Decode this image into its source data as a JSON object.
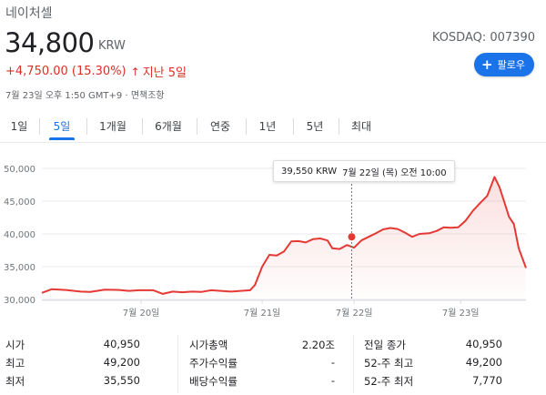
{
  "header": {
    "company": "네이처셀",
    "price": "34,800",
    "currency": "KRW",
    "ticker": "KOSDAQ: 007390",
    "change": "+4,750.00 (15.30%)",
    "change_arrow": "↑",
    "change_period": "지난 5일",
    "timestamp": "7월 23일 오후 1:50 GMT+9 · 면책조항",
    "follow_label": "팔로우",
    "follow_icon": "plus-icon"
  },
  "tabs": [
    {
      "label": "1일",
      "active": false
    },
    {
      "label": "5일",
      "active": true
    },
    {
      "label": "1개월",
      "active": false
    },
    {
      "label": "6개월",
      "active": false
    },
    {
      "label": "연중",
      "active": false
    },
    {
      "label": "1년",
      "active": false
    },
    {
      "label": "5년",
      "active": false
    },
    {
      "label": "최대",
      "active": false
    }
  ],
  "tooltip": {
    "value": "39,550 KRW",
    "date": "7월 22일 (목) 오전 10:00"
  },
  "colors": {
    "line": "#e53935",
    "accent": "#1a73e8",
    "negative": "#d93025"
  },
  "chart_data": {
    "type": "line",
    "yticks": [
      "50,000",
      "45,000",
      "40,000",
      "35,000",
      "30,000"
    ],
    "xticks": [
      "7월 20일",
      "7월 21일",
      "7월 22일",
      "7월 23일"
    ],
    "ylim": [
      30000,
      50000
    ],
    "highlight": {
      "x": 0.64,
      "y": 39550
    },
    "series": [
      {
        "points": [
          [
            0.0,
            31000
          ],
          [
            0.02,
            31550
          ],
          [
            0.05,
            31450
          ],
          [
            0.08,
            31200
          ],
          [
            0.1,
            31150
          ],
          [
            0.13,
            31500
          ],
          [
            0.16,
            31450
          ],
          [
            0.18,
            31300
          ],
          [
            0.2,
            31400
          ],
          [
            0.23,
            31400
          ],
          [
            0.25,
            30850
          ],
          [
            0.27,
            31200
          ],
          [
            0.29,
            31100
          ],
          [
            0.31,
            31200
          ],
          [
            0.33,
            31150
          ],
          [
            0.35,
            31400
          ],
          [
            0.37,
            31300
          ],
          [
            0.39,
            31200
          ],
          [
            0.41,
            31300
          ],
          [
            0.43,
            31400
          ],
          [
            0.44,
            32200
          ],
          [
            0.455,
            35000
          ],
          [
            0.47,
            36800
          ],
          [
            0.485,
            36700
          ],
          [
            0.5,
            37300
          ],
          [
            0.515,
            38850
          ],
          [
            0.53,
            38900
          ],
          [
            0.545,
            38700
          ],
          [
            0.56,
            39200
          ],
          [
            0.575,
            39300
          ],
          [
            0.59,
            39000
          ],
          [
            0.6,
            37800
          ],
          [
            0.615,
            37700
          ],
          [
            0.63,
            38300
          ],
          [
            0.645,
            37900
          ],
          [
            0.66,
            39000
          ],
          [
            0.675,
            39550
          ],
          [
            0.69,
            40100
          ],
          [
            0.705,
            40700
          ],
          [
            0.72,
            40900
          ],
          [
            0.735,
            40750
          ],
          [
            0.75,
            40200
          ],
          [
            0.765,
            39550
          ],
          [
            0.78,
            40000
          ],
          [
            0.8,
            40100
          ],
          [
            0.815,
            40450
          ],
          [
            0.83,
            41000
          ],
          [
            0.845,
            40950
          ],
          [
            0.86,
            41000
          ],
          [
            0.875,
            42000
          ],
          [
            0.89,
            43500
          ],
          [
            0.905,
            44700
          ],
          [
            0.92,
            45800
          ],
          [
            0.935,
            48700
          ],
          [
            0.945,
            47200
          ],
          [
            0.955,
            44900
          ],
          [
            0.965,
            42600
          ],
          [
            0.975,
            41500
          ],
          [
            0.985,
            37800
          ],
          [
            1.0,
            34800
          ]
        ]
      }
    ]
  },
  "stats": {
    "col1": [
      {
        "label": "시가",
        "value": "40,950"
      },
      {
        "label": "최고",
        "value": "49,200"
      },
      {
        "label": "최저",
        "value": "35,550"
      }
    ],
    "col2": [
      {
        "label": "시가총액",
        "value": "2.20조"
      },
      {
        "label": "주가수익률",
        "value": "-"
      },
      {
        "label": "배당수익률",
        "value": "-"
      }
    ],
    "col3": [
      {
        "label": "전일 종가",
        "value": "40,950"
      },
      {
        "label": "52-주 최고",
        "value": "49,200"
      },
      {
        "label": "52-주 최저",
        "value": "7,770"
      }
    ]
  }
}
